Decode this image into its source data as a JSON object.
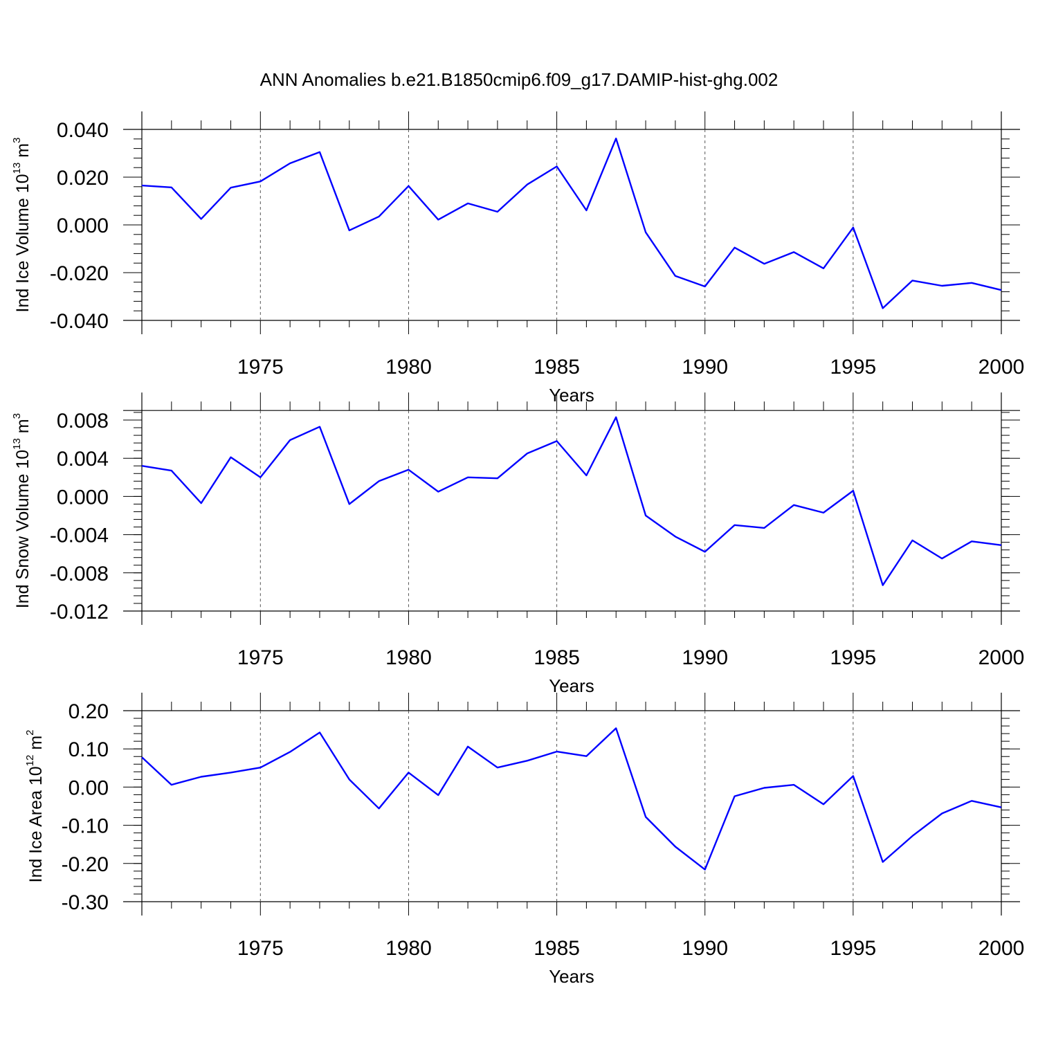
{
  "title": "ANN Anomalies b.e21.B1850cmip6.f09_g17.DAMIP-hist-ghg.002",
  "chart_data": [
    {
      "type": "line",
      "ylabel": {
        "prefix": "Ind Ice Volume 10",
        "exp": "13",
        "unit": " m",
        "unit_exp": "3"
      },
      "xlabel": "Years",
      "xlim": [
        1971,
        2000
      ],
      "ylim": [
        -0.04,
        0.04
      ],
      "yticks": [
        -0.04,
        -0.02,
        0.0,
        0.02,
        0.04
      ],
      "ytick_labels": [
        "-0.040",
        "-0.020",
        "0.000",
        "0.020",
        "0.040"
      ],
      "xticks": [
        1975,
        1980,
        1985,
        1990,
        1995,
        2000
      ],
      "xtick_labels": [
        "1975",
        "1980",
        "1985",
        "1990",
        "1995",
        "2000"
      ],
      "grid": "dashed vertical at major x ticks",
      "line_color": "#0000ff",
      "x": [
        1971,
        1972,
        1973,
        1974,
        1975,
        1976,
        1977,
        1978,
        1979,
        1980,
        1981,
        1982,
        1983,
        1984,
        1985,
        1986,
        1987,
        1988,
        1989,
        1990,
        1991,
        1992,
        1993,
        1994,
        1995,
        1996,
        1997,
        1998,
        1999,
        2000
      ],
      "y": [
        0.0165,
        0.0157,
        0.0025,
        0.0156,
        0.0182,
        0.0258,
        0.0305,
        -0.0023,
        0.0035,
        0.0163,
        0.0022,
        0.009,
        0.0055,
        0.0169,
        0.0245,
        0.0061,
        0.0362,
        -0.0031,
        -0.0214,
        -0.0258,
        -0.0095,
        -0.0163,
        -0.0114,
        -0.0182,
        -0.0011,
        -0.0349,
        -0.0233,
        -0.0255,
        -0.0243,
        -0.0273
      ]
    },
    {
      "type": "line",
      "ylabel": {
        "prefix": "Ind Snow Volume 10",
        "exp": "13",
        "unit": " m",
        "unit_exp": "3"
      },
      "xlabel": "Years",
      "xlim": [
        1971,
        2000
      ],
      "ylim": [
        -0.012,
        0.009
      ],
      "yticks": [
        -0.012,
        -0.008,
        -0.004,
        0.0,
        0.004,
        0.008
      ],
      "ytick_labels": [
        "-0.012",
        "-0.008",
        "-0.004",
        "0.000",
        "0.004",
        "0.008"
      ],
      "xticks": [
        1975,
        1980,
        1985,
        1990,
        1995,
        2000
      ],
      "xtick_labels": [
        "1975",
        "1980",
        "1985",
        "1990",
        "1995",
        "2000"
      ],
      "grid": "dashed vertical at major x ticks",
      "line_color": "#0000ff",
      "x": [
        1971,
        1972,
        1973,
        1974,
        1975,
        1976,
        1977,
        1978,
        1979,
        1980,
        1981,
        1982,
        1983,
        1984,
        1985,
        1986,
        1987,
        1988,
        1989,
        1990,
        1991,
        1992,
        1993,
        1994,
        1995,
        1996,
        1997,
        1998,
        1999,
        2000
      ],
      "y": [
        0.0032,
        0.0027,
        -0.0007,
        0.0041,
        0.002,
        0.0059,
        0.0073,
        -0.0008,
        0.0016,
        0.0028,
        0.0005,
        0.002,
        0.0019,
        0.0045,
        0.0058,
        0.0022,
        0.0083,
        -0.002,
        -0.0042,
        -0.0058,
        -0.003,
        -0.0033,
        -0.0009,
        -0.0017,
        0.0006,
        -0.0093,
        -0.0046,
        -0.0065,
        -0.0047,
        -0.0051
      ]
    },
    {
      "type": "line",
      "ylabel": {
        "prefix": "Ind Ice Area 10",
        "exp": "12",
        "unit": " m",
        "unit_exp": "2"
      },
      "xlabel": "Years",
      "xlim": [
        1971,
        2000
      ],
      "ylim": [
        -0.3,
        0.2
      ],
      "yticks": [
        -0.3,
        -0.2,
        -0.1,
        0.0,
        0.1,
        0.2
      ],
      "ytick_labels": [
        "-0.30",
        "-0.20",
        "-0.10",
        "0.00",
        "0.10",
        "0.20"
      ],
      "xticks": [
        1975,
        1980,
        1985,
        1990,
        1995,
        2000
      ],
      "xtick_labels": [
        "1975",
        "1980",
        "1985",
        "1990",
        "1995",
        "2000"
      ],
      "grid": "dashed vertical at major x ticks",
      "line_color": "#0000ff",
      "x": [
        1971,
        1972,
        1973,
        1974,
        1975,
        1976,
        1977,
        1978,
        1979,
        1980,
        1981,
        1982,
        1983,
        1984,
        1985,
        1986,
        1987,
        1988,
        1989,
        1990,
        1991,
        1992,
        1993,
        1994,
        1995,
        1996,
        1997,
        1998,
        1999,
        2000
      ],
      "y": [
        0.078,
        0.006,
        0.027,
        0.038,
        0.051,
        0.092,
        0.143,
        0.02,
        -0.056,
        0.038,
        -0.021,
        0.106,
        0.051,
        0.069,
        0.093,
        0.081,
        0.154,
        -0.078,
        -0.156,
        -0.216,
        -0.024,
        -0.002,
        0.006,
        -0.045,
        0.029,
        -0.196,
        -0.128,
        -0.069,
        -0.036,
        -0.053
      ]
    }
  ]
}
